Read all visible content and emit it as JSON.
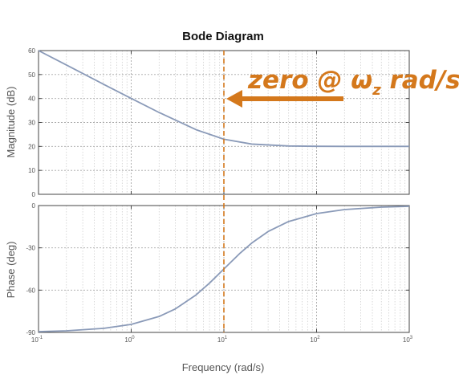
{
  "chart_data": {
    "type": "line",
    "title": "Bode Diagram",
    "xlabel": "Frequency  (rad/s)",
    "x_scale": "log",
    "xlim": [
      0.1,
      1000
    ],
    "x_ticks": [
      0.1,
      1,
      10,
      100,
      1000
    ],
    "x_tick_labels": [
      {
        "base": "10",
        "exp": "-1"
      },
      {
        "base": "10",
        "exp": "0"
      },
      {
        "base": "10",
        "exp": "1"
      },
      {
        "base": "10",
        "exp": "2"
      },
      {
        "base": "10",
        "exp": "3"
      }
    ],
    "grid": true,
    "panels": [
      {
        "name": "magnitude",
        "ylabel": "Magnitude (dB)",
        "ylim": [
          0,
          60
        ],
        "y_ticks": [
          0,
          10,
          20,
          30,
          40,
          50,
          60
        ],
        "y_tick_labels": [
          "0",
          "10",
          "20",
          "30",
          "40",
          "50",
          "60"
        ],
        "series": [
          {
            "color": "#8a9ab8",
            "x": [
              0.1,
              0.2,
              0.5,
              1,
              2,
              5,
              10,
              20,
              50,
              100,
              200,
              500,
              1000
            ],
            "y": [
              60,
              54,
              46,
              40.04,
              34.15,
              26.99,
              23.01,
              20.97,
              20.17,
              20.04,
              20.01,
              20,
              20
            ]
          }
        ]
      },
      {
        "name": "phase",
        "ylabel": "Phase (deg)",
        "ylim": [
          -90,
          0
        ],
        "y_ticks": [
          -90,
          -60,
          -30,
          0
        ],
        "y_tick_labels": [
          "-90",
          "-60",
          "-30",
          "0"
        ],
        "series": [
          {
            "color": "#8a9ab8",
            "x": [
              0.1,
              0.2,
              0.5,
              1,
              2,
              3,
              5,
              7,
              10,
              15,
              20,
              30,
              50,
              100,
              200,
              500,
              1000
            ],
            "y": [
              -89.43,
              -88.85,
              -87.14,
              -84.29,
              -78.69,
              -73.3,
              -63.43,
              -55.01,
              -45,
              -33.69,
              -26.57,
              -18.43,
              -11.31,
              -5.71,
              -2.86,
              -1.15,
              -0.57
            ]
          }
        ]
      }
    ],
    "markers": [
      {
        "type": "vline",
        "x": 10,
        "style": "dashed",
        "color": "#d4781c"
      }
    ],
    "annotation": {
      "text_main": "zero @ ",
      "symbol": "ω",
      "subscript": "z",
      "text_after": " rad/s",
      "color": "#d4781c",
      "arrow_color": "#d4781c"
    }
  }
}
